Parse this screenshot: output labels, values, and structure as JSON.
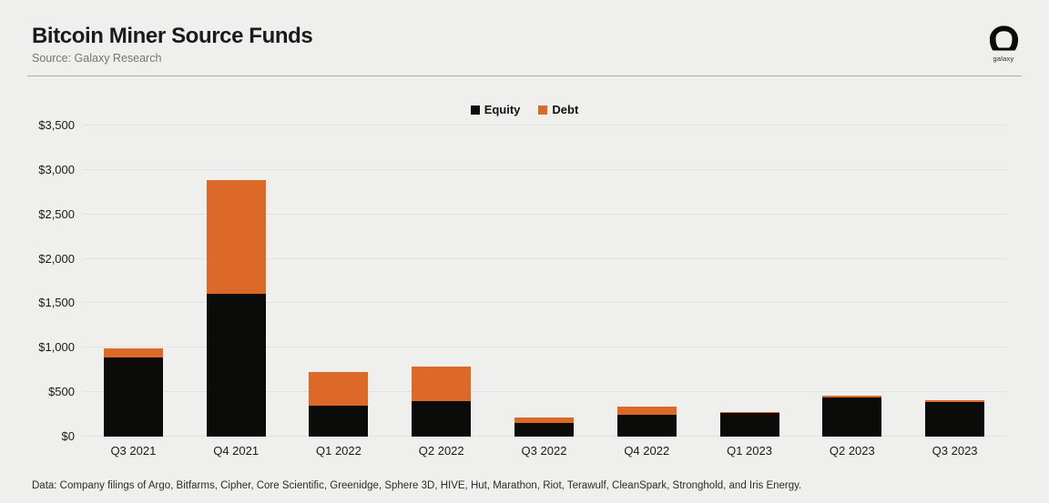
{
  "header": {
    "title": "Bitcoin Miner Source Funds",
    "subtitle": "Source: Galaxy Research",
    "logo_text": "galaxy"
  },
  "footnote": "Data: Company filings of Argo, Bitfarms, Cipher, Core Scientific, Greenidge, Sphere 3D, HIVE, Hut, Marathon, Riot, Terawulf, CleanSpark, Stronghold, and Iris Energy.",
  "colors": {
    "equity": "#0B0B09",
    "debt": "#DC6927",
    "background": "#EFEFED",
    "gridline": "#E2E2E0"
  },
  "chart_data": {
    "type": "bar",
    "stacked": true,
    "title": "Bitcoin Miner Source Funds",
    "unit": "$ millions",
    "categories": [
      "Q3 2021",
      "Q4 2021",
      "Q1 2022",
      "Q2 2022",
      "Q3 2022",
      "Q4 2022",
      "Q1 2023",
      "Q2 2023",
      "Q3 2023"
    ],
    "series": [
      {
        "name": "Equity",
        "color": "#0B0B09",
        "values": [
          890,
          1610,
          345,
          400,
          150,
          245,
          270,
          440,
          385
        ]
      },
      {
        "name": "Debt",
        "color": "#DC6927",
        "values": [
          100,
          1280,
          380,
          390,
          70,
          95,
          10,
          25,
          25
        ]
      }
    ],
    "ylim": [
      0,
      3500
    ],
    "ytick_step": 500,
    "ytick_labels": [
      "$0",
      "$500",
      "$1,000",
      "$1,500",
      "$2,000",
      "$2,500",
      "$3,000",
      "$3,500"
    ],
    "grid": true,
    "legend_position": "top-center",
    "xlabel": "",
    "ylabel": ""
  }
}
